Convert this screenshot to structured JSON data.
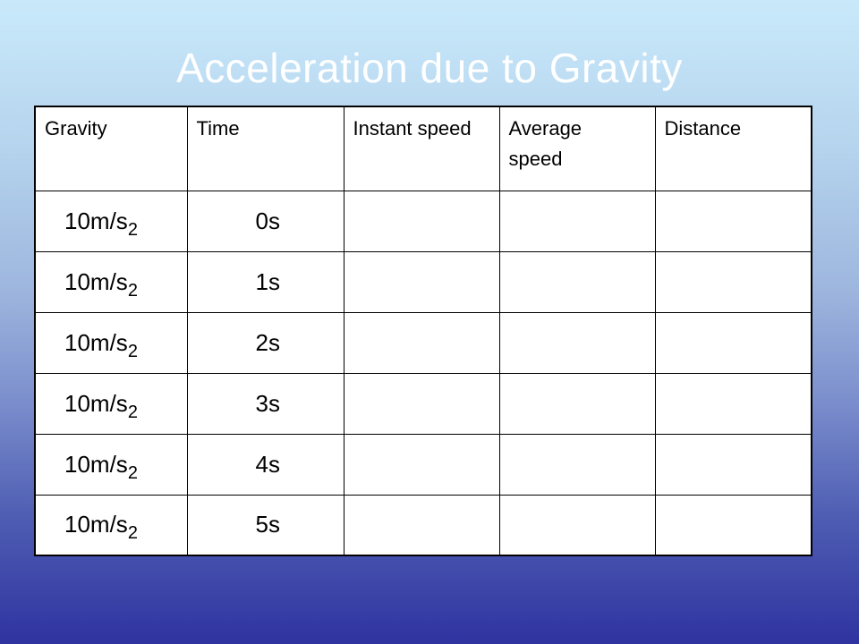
{
  "slide": {
    "title": "Acceleration due to Gravity"
  },
  "table": {
    "headers": [
      {
        "label": "Gravity"
      },
      {
        "label": "Time"
      },
      {
        "label": "Instant speed"
      },
      {
        "line1": "Average",
        "line2": "speed"
      },
      {
        "label": "Distance"
      }
    ],
    "rows": [
      {
        "gravity": "10m/s",
        "exponent": "2",
        "time": "0s",
        "instant_speed": "",
        "average_speed": "",
        "distance": ""
      },
      {
        "gravity": "10m/s",
        "exponent": "2",
        "time": "1s",
        "instant_speed": "",
        "average_speed": "",
        "distance": ""
      },
      {
        "gravity": "10m/s",
        "exponent": "2",
        "time": "2s",
        "instant_speed": "",
        "average_speed": "",
        "distance": ""
      },
      {
        "gravity": "10m/s",
        "exponent": "2",
        "time": "3s",
        "instant_speed": "",
        "average_speed": "",
        "distance": ""
      },
      {
        "gravity": "10m/s",
        "exponent": "2",
        "time": "4s",
        "instant_speed": "",
        "average_speed": "",
        "distance": ""
      },
      {
        "gravity": "10m/s",
        "exponent": "2",
        "time": "5s",
        "instant_speed": "",
        "average_speed": "",
        "distance": ""
      }
    ]
  },
  "colors": {
    "title_text": "#ffffff",
    "background_top": "#c9e9fb",
    "background_bottom": "#2f33a0",
    "table_background": "#ffffff",
    "table_border": "#000000"
  }
}
